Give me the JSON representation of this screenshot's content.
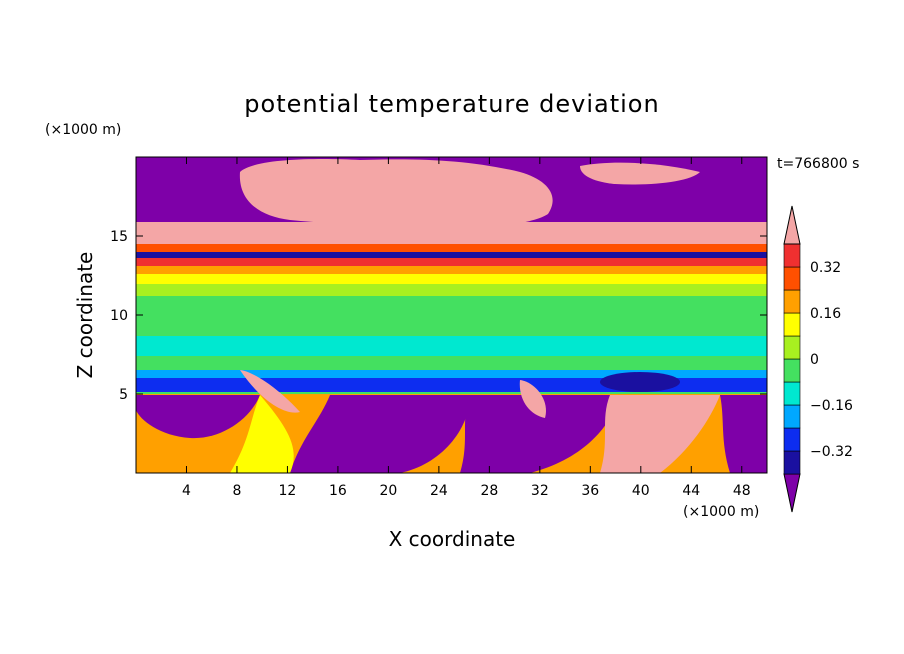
{
  "chart_data": {
    "type": "heatmap",
    "title": "potential temperature deviation",
    "time_label": "t=766800 s",
    "xlabel": "X coordinate",
    "ylabel": "Z coordinate",
    "x_unit": "(×1000 m)",
    "y_unit": "(×1000 m)",
    "xlim": [
      0,
      50
    ],
    "ylim": [
      0,
      20
    ],
    "x_ticks": [
      4,
      8,
      12,
      16,
      20,
      24,
      28,
      32,
      36,
      40,
      44,
      48
    ],
    "y_ticks": [
      5,
      10,
      15
    ],
    "colorbar": {
      "levels": [
        -0.4,
        -0.32,
        -0.24,
        -0.16,
        -0.08,
        0,
        0.08,
        0.16,
        0.24,
        0.32,
        0.4
      ],
      "tick_labels": [
        {
          "value": 0.32,
          "text": "0.32"
        },
        {
          "value": 0.16,
          "text": "0.16"
        },
        {
          "value": 0,
          "text": "0"
        },
        {
          "value": -0.16,
          "text": "−0.16"
        },
        {
          "value": -0.32,
          "text": "−0.32"
        }
      ],
      "colors": [
        "#7e00a8",
        "#1a10a0",
        "#0d2df0",
        "#00a8ff",
        "#00e8d0",
        "#44e060",
        "#a8f020",
        "#ffff00",
        "#ffa000",
        "#ff5000",
        "#f03030",
        "#f4a6a6"
      ],
      "extend": "both"
    }
  }
}
